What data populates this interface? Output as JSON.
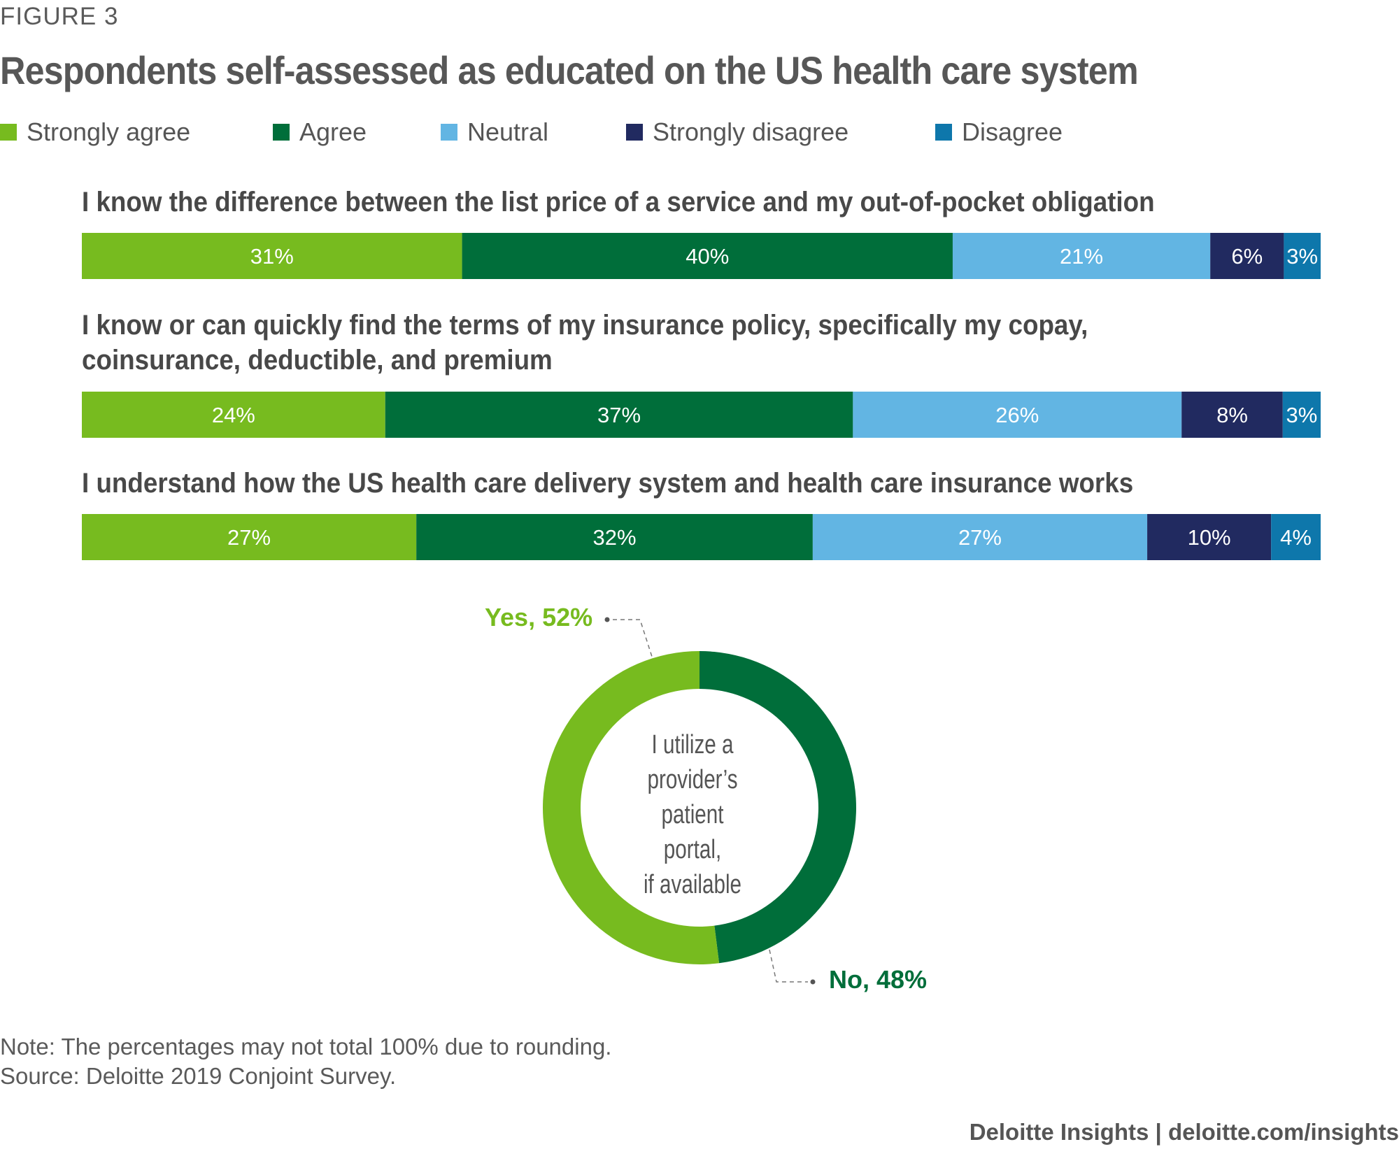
{
  "figure_label": "FIGURE 3",
  "title": "Respondents self-assessed as educated on the US health care system",
  "legend": [
    {
      "label": "Strongly agree",
      "color": "#77bb1f"
    },
    {
      "label": "Agree",
      "color": "#006e3a"
    },
    {
      "label": "Neutral",
      "color": "#62b5e3"
    },
    {
      "label": "Strongly disagree",
      "color": "#212a60"
    },
    {
      "label": "Disagree",
      "color": "#0e77ab"
    }
  ],
  "chart_data": [
    {
      "type": "bar",
      "orientation": "horizontal-stacked",
      "series_names": [
        "Strongly agree",
        "Agree",
        "Neutral",
        "Strongly disagree",
        "Disagree"
      ],
      "colors": [
        "#77bb1f",
        "#006e3a",
        "#62b5e3",
        "#212a60",
        "#0e77ab"
      ],
      "categories": [
        "I know the difference between the list price of a service and my out-of-pocket obligation",
        "I know or can quickly find the terms of my insurance policy, specifically my copay, coinsurance, deductible, and premium",
        "I understand how the US health care delivery system and health care insurance works"
      ],
      "values": [
        [
          31,
          40,
          21,
          6,
          3
        ],
        [
          24,
          37,
          26,
          8,
          3
        ],
        [
          27,
          32,
          27,
          10,
          4
        ]
      ],
      "labels": [
        [
          "31%",
          "40%",
          "21%",
          "6%",
          "3%"
        ],
        [
          "24%",
          "37%",
          "26%",
          "8%",
          "3%"
        ],
        [
          "27%",
          "32%",
          "27%",
          "10%",
          "4%"
        ]
      ],
      "unit": "%"
    },
    {
      "type": "pie",
      "variant": "donut",
      "center_label": "I utilize a provider’s patient portal, if available",
      "center_lines": [
        "I utilize a",
        "provider’s",
        "patient portal,",
        "if available"
      ],
      "slices": [
        {
          "name": "No",
          "value": 48,
          "label": "No, 48%",
          "color": "#006e3a"
        },
        {
          "name": "Yes",
          "value": 52,
          "label": "Yes, 52%",
          "color": "#77bb1f"
        }
      ]
    }
  ],
  "notes": {
    "note": "Note: The percentages may not total 100% due to rounding.",
    "source": "Source: Deloitte 2019 Conjoint Survey."
  },
  "credit": "Deloitte Insights | deloitte.com/insights"
}
